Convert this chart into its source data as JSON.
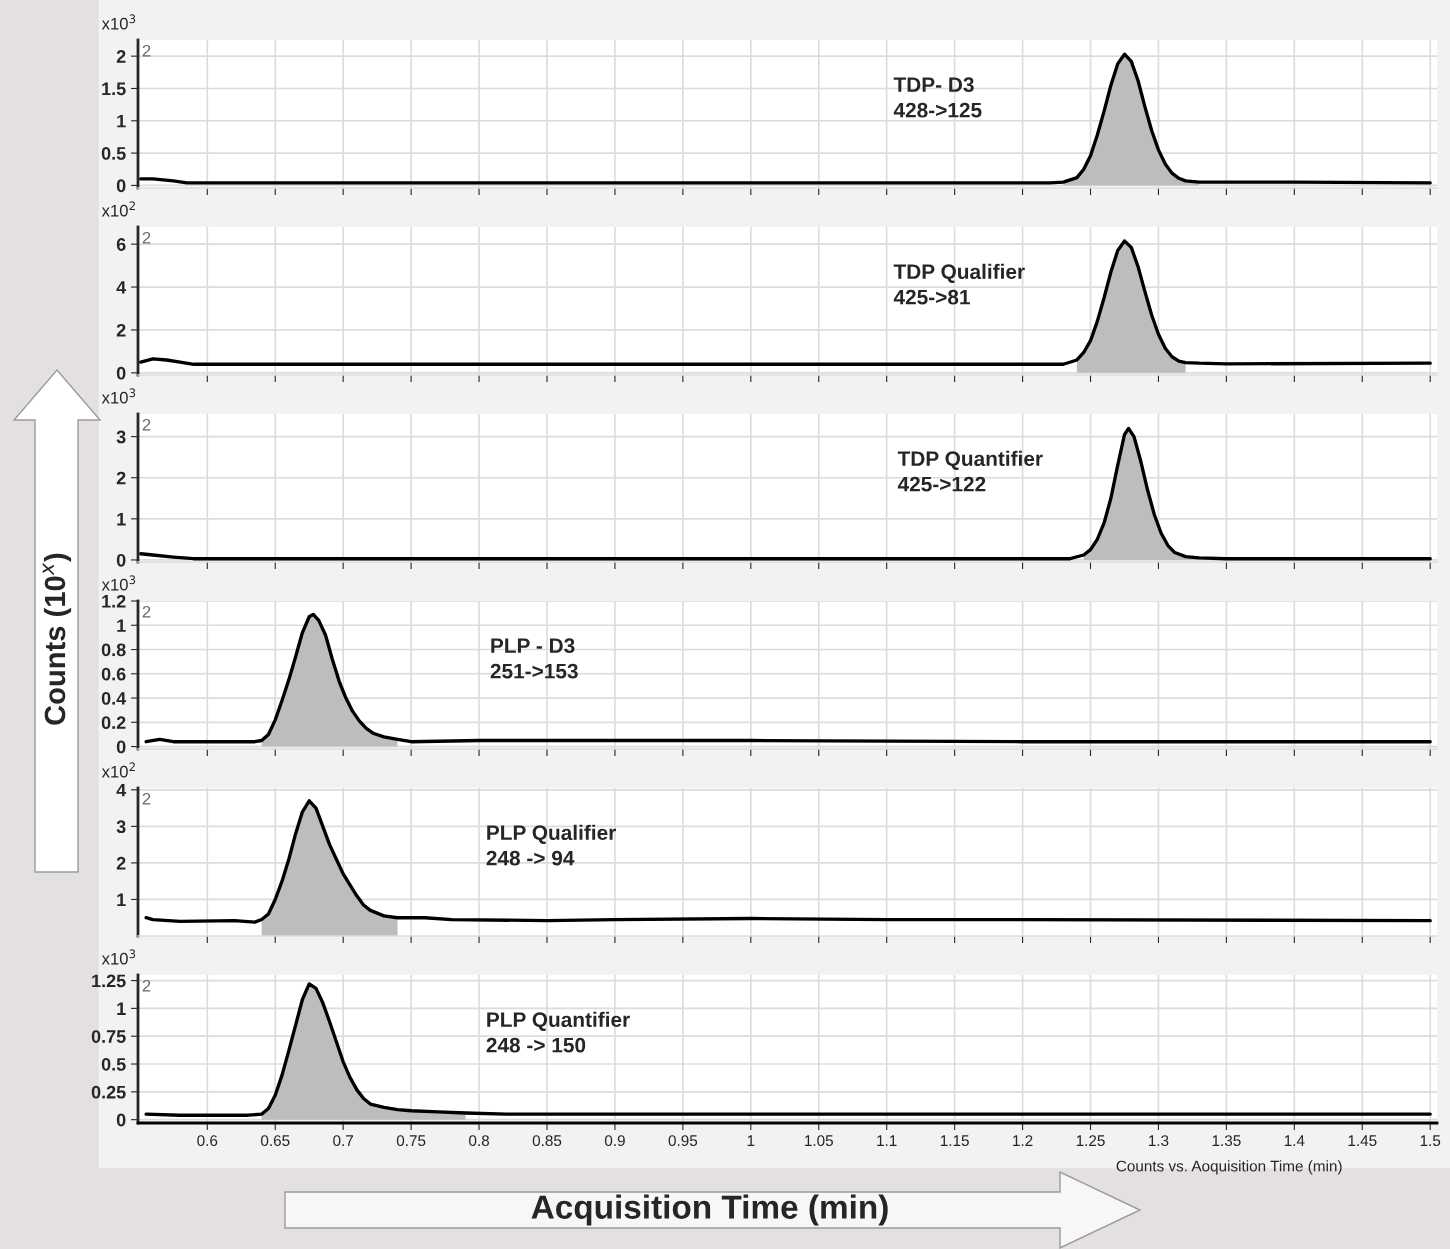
{
  "chart_data": [
    {
      "type": "line",
      "xlim": [
        0.549,
        1.505
      ],
      "ylim": [
        -0.04,
        2.25
      ],
      "xticks": [
        0.6,
        0.65,
        0.7,
        0.75,
        0.8,
        0.85,
        0.9,
        0.95,
        1,
        1.05,
        1.1,
        1.15,
        1.2,
        1.25,
        1.3,
        1.35,
        1.4,
        1.45,
        1.5
      ],
      "yticks": [
        0,
        0.5,
        1,
        1.5,
        2
      ],
      "grid": true,
      "tick_labels": "y",
      "annotations": [
        "x10$^{3}$",
        "2",
        "TDP- D3\n428->125"
      ],
      "series": [
        {
          "color": "#000000",
          "x": [
            0.551,
            0.56,
            0.575,
            0.585,
            0.7,
            0.9,
            1.1,
            1.2,
            1.22,
            1.23,
            1.24,
            1.245,
            1.25,
            1.255,
            1.26,
            1.265,
            1.27,
            1.275,
            1.28,
            1.285,
            1.29,
            1.295,
            1.3,
            1.305,
            1.31,
            1.315,
            1.32,
            1.33,
            1.35,
            1.4,
            1.5
          ],
          "values": [
            0.1,
            0.1,
            0.07,
            0.04,
            0.04,
            0.04,
            0.04,
            0.04,
            0.04,
            0.05,
            0.12,
            0.25,
            0.46,
            0.78,
            1.15,
            1.55,
            1.88,
            2.03,
            1.92,
            1.62,
            1.22,
            0.85,
            0.55,
            0.33,
            0.19,
            0.11,
            0.07,
            0.05,
            0.05,
            0.05,
            0.04
          ]
        },
        {
          "type": "area",
          "color": "#bdbdbd",
          "x": [
            1.23,
            1.24,
            1.245,
            1.25,
            1.255,
            1.26,
            1.265,
            1.27,
            1.275,
            1.28,
            1.285,
            1.29,
            1.295,
            1.3,
            1.305,
            1.31,
            1.315,
            1.32,
            1.33
          ],
          "values": [
            0.05,
            0.12,
            0.25,
            0.46,
            0.78,
            1.15,
            1.55,
            1.88,
            2.03,
            1.92,
            1.62,
            1.22,
            0.85,
            0.55,
            0.33,
            0.19,
            0.11,
            0.07,
            0.05
          ]
        }
      ]
    },
    {
      "type": "line",
      "xlim": [
        0.549,
        1.505
      ],
      "ylim": [
        -0.1,
        6.8
      ],
      "xticks": [
        0.6,
        0.65,
        0.7,
        0.75,
        0.8,
        0.85,
        0.9,
        0.95,
        1,
        1.05,
        1.1,
        1.15,
        1.2,
        1.25,
        1.3,
        1.35,
        1.4,
        1.45,
        1.5
      ],
      "yticks": [
        0,
        2,
        4,
        6
      ],
      "grid": true,
      "tick_labels": "y",
      "annotations": [
        "x10$^{2}$",
        "2",
        "TDP Qualifier\n425->81"
      ],
      "series": [
        {
          "color": "#000000",
          "x": [
            0.551,
            0.56,
            0.57,
            0.58,
            0.59,
            0.8,
            1.0,
            1.2,
            1.23,
            1.24,
            1.245,
            1.25,
            1.255,
            1.26,
            1.265,
            1.27,
            1.275,
            1.28,
            1.285,
            1.29,
            1.295,
            1.3,
            1.305,
            1.31,
            1.315,
            1.32,
            1.33,
            1.35,
            1.5
          ],
          "values": [
            0.5,
            0.65,
            0.6,
            0.5,
            0.4,
            0.4,
            0.4,
            0.4,
            0.4,
            0.6,
            0.95,
            1.5,
            2.4,
            3.5,
            4.7,
            5.7,
            6.15,
            5.85,
            4.95,
            3.8,
            2.7,
            1.8,
            1.15,
            0.75,
            0.55,
            0.48,
            0.45,
            0.42,
            0.45
          ]
        },
        {
          "type": "area",
          "color": "#bdbdbd",
          "x": [
            1.24,
            1.245,
            1.25,
            1.255,
            1.26,
            1.265,
            1.27,
            1.275,
            1.28,
            1.285,
            1.29,
            1.295,
            1.3,
            1.305,
            1.31,
            1.315,
            1.32
          ],
          "values": [
            0.6,
            0.95,
            1.5,
            2.4,
            3.5,
            4.7,
            5.7,
            6.15,
            5.85,
            4.95,
            3.8,
            2.7,
            1.8,
            1.15,
            0.75,
            0.55,
            0.48
          ]
        }
      ]
    },
    {
      "type": "line",
      "xlim": [
        0.549,
        1.505
      ],
      "ylim": [
        -0.05,
        3.55
      ],
      "xticks": [
        0.6,
        0.65,
        0.7,
        0.75,
        0.8,
        0.85,
        0.9,
        0.95,
        1,
        1.05,
        1.1,
        1.15,
        1.2,
        1.25,
        1.3,
        1.35,
        1.4,
        1.45,
        1.5
      ],
      "yticks": [
        0,
        1,
        2,
        3
      ],
      "grid": true,
      "tick_labels": "y",
      "annotations": [
        "x10$^{3}$",
        "2",
        "TDP Quantifier\n425->122"
      ],
      "series": [
        {
          "color": "#000000",
          "x": [
            0.551,
            0.56,
            0.575,
            0.59,
            0.8,
            1.0,
            1.2,
            1.235,
            1.245,
            1.25,
            1.255,
            1.26,
            1.265,
            1.27,
            1.275,
            1.278,
            1.282,
            1.287,
            1.292,
            1.297,
            1.302,
            1.307,
            1.312,
            1.32,
            1.33,
            1.35,
            1.5
          ],
          "values": [
            0.15,
            0.12,
            0.07,
            0.03,
            0.03,
            0.03,
            0.03,
            0.03,
            0.12,
            0.25,
            0.5,
            0.9,
            1.5,
            2.3,
            3.05,
            3.2,
            3.0,
            2.4,
            1.7,
            1.1,
            0.65,
            0.35,
            0.18,
            0.08,
            0.05,
            0.03,
            0.03
          ]
        },
        {
          "type": "area",
          "color": "#bdbdbd",
          "x": [
            1.245,
            1.25,
            1.255,
            1.26,
            1.265,
            1.27,
            1.275,
            1.278,
            1.282,
            1.287,
            1.292,
            1.297,
            1.302,
            1.307,
            1.312,
            1.32,
            1.33
          ],
          "values": [
            0.12,
            0.25,
            0.5,
            0.9,
            1.5,
            2.3,
            3.05,
            3.2,
            3.0,
            2.4,
            1.7,
            1.1,
            0.65,
            0.35,
            0.18,
            0.08,
            0.05
          ]
        }
      ]
    },
    {
      "type": "line",
      "ylabel": "Counts (10$^{x}$)",
      "xlim": [
        0.549,
        1.505
      ],
      "ylim": [
        -0.02,
        1.2
      ],
      "xticks": [
        0.6,
        0.65,
        0.7,
        0.75,
        0.8,
        0.85,
        0.9,
        0.95,
        1,
        1.05,
        1.1,
        1.15,
        1.2,
        1.25,
        1.3,
        1.35,
        1.4,
        1.45,
        1.5
      ],
      "yticks": [
        0,
        0.2,
        0.4,
        0.6,
        0.8,
        1,
        1.2
      ],
      "grid": true,
      "tick_labels": "y",
      "annotations": [
        "x10$^{3}$",
        "2",
        "PLP - D3\n251->153"
      ],
      "series": [
        {
          "color": "#000000",
          "x": [
            0.555,
            0.565,
            0.575,
            0.6,
            0.635,
            0.64,
            0.645,
            0.65,
            0.655,
            0.66,
            0.665,
            0.67,
            0.675,
            0.678,
            0.682,
            0.687,
            0.692,
            0.697,
            0.702,
            0.707,
            0.712,
            0.717,
            0.722,
            0.73,
            0.74,
            0.75,
            0.8,
            1.0,
            1.2,
            1.5
          ],
          "values": [
            0.04,
            0.06,
            0.04,
            0.04,
            0.04,
            0.05,
            0.1,
            0.22,
            0.38,
            0.55,
            0.74,
            0.94,
            1.07,
            1.09,
            1.04,
            0.92,
            0.72,
            0.54,
            0.4,
            0.29,
            0.21,
            0.15,
            0.11,
            0.08,
            0.06,
            0.04,
            0.05,
            0.05,
            0.04,
            0.04
          ]
        },
        {
          "type": "area",
          "color": "#bdbdbd",
          "x": [
            0.64,
            0.645,
            0.65,
            0.655,
            0.66,
            0.665,
            0.67,
            0.675,
            0.678,
            0.682,
            0.687,
            0.692,
            0.697,
            0.702,
            0.707,
            0.712,
            0.717,
            0.722,
            0.73,
            0.74
          ],
          "values": [
            0.05,
            0.1,
            0.22,
            0.38,
            0.55,
            0.74,
            0.94,
            1.07,
            1.09,
            1.04,
            0.92,
            0.72,
            0.54,
            0.4,
            0.29,
            0.21,
            0.15,
            0.11,
            0.08,
            0.06
          ]
        }
      ]
    },
    {
      "type": "line",
      "xlim": [
        0.549,
        1.505
      ],
      "ylim": [
        0,
        4.05
      ],
      "xticks": [
        0.6,
        0.65,
        0.7,
        0.75,
        0.8,
        0.85,
        0.9,
        0.95,
        1,
        1.05,
        1.1,
        1.15,
        1.2,
        1.25,
        1.3,
        1.35,
        1.4,
        1.45,
        1.5
      ],
      "yticks": [
        1,
        2,
        3,
        4
      ],
      "grid": true,
      "tick_labels": "y",
      "annotations": [
        "x10$^{2}$",
        "2",
        "PLP Qualifier\n248 -> 94"
      ],
      "series": [
        {
          "color": "#000000",
          "x": [
            0.555,
            0.56,
            0.58,
            0.62,
            0.635,
            0.64,
            0.645,
            0.65,
            0.655,
            0.66,
            0.665,
            0.67,
            0.675,
            0.68,
            0.685,
            0.69,
            0.695,
            0.7,
            0.705,
            0.71,
            0.715,
            0.72,
            0.73,
            0.74,
            0.76,
            0.78,
            0.85,
            0.9,
            1.0,
            1.1,
            1.2,
            1.5
          ],
          "values": [
            0.5,
            0.45,
            0.4,
            0.42,
            0.38,
            0.45,
            0.6,
            1.0,
            1.5,
            2.1,
            2.8,
            3.4,
            3.7,
            3.5,
            3.0,
            2.5,
            2.1,
            1.7,
            1.4,
            1.1,
            0.85,
            0.7,
            0.55,
            0.5,
            0.5,
            0.45,
            0.42,
            0.45,
            0.48,
            0.45,
            0.45,
            0.42
          ]
        },
        {
          "type": "area",
          "color": "#bdbdbd",
          "x": [
            0.64,
            0.645,
            0.65,
            0.655,
            0.66,
            0.665,
            0.67,
            0.675,
            0.68,
            0.685,
            0.69,
            0.695,
            0.7,
            0.705,
            0.71,
            0.715,
            0.72,
            0.73,
            0.74
          ],
          "values": [
            0.45,
            0.6,
            1.0,
            1.5,
            2.1,
            2.8,
            3.4,
            3.7,
            3.5,
            3.0,
            2.5,
            2.1,
            1.7,
            1.4,
            1.1,
            0.85,
            0.7,
            0.55,
            0.5
          ]
        }
      ]
    },
    {
      "type": "line",
      "xlabel": "Acquisition Time (min)",
      "xlim": [
        0.549,
        1.505
      ],
      "ylim": [
        -0.03,
        1.3
      ],
      "xticks": [
        0.6,
        0.65,
        0.7,
        0.75,
        0.8,
        0.85,
        0.9,
        0.95,
        1,
        1.05,
        1.1,
        1.15,
        1.2,
        1.25,
        1.3,
        1.35,
        1.4,
        1.45,
        1.5
      ],
      "yticks": [
        0,
        0.25,
        0.5,
        0.75,
        1,
        1.25
      ],
      "grid": true,
      "annotations": [
        "x10$^{3}$",
        "2",
        "PLP Quantifier\n248 -> 150",
        "Counts vs. Aoquisition Time (min)"
      ],
      "series": [
        {
          "color": "#000000",
          "x": [
            0.555,
            0.58,
            0.63,
            0.64,
            0.645,
            0.65,
            0.655,
            0.66,
            0.665,
            0.67,
            0.675,
            0.68,
            0.685,
            0.69,
            0.695,
            0.7,
            0.705,
            0.71,
            0.715,
            0.72,
            0.73,
            0.74,
            0.75,
            0.77,
            0.79,
            0.82,
            1.0,
            1.5
          ],
          "values": [
            0.05,
            0.04,
            0.04,
            0.05,
            0.1,
            0.22,
            0.4,
            0.62,
            0.85,
            1.08,
            1.22,
            1.18,
            1.05,
            0.88,
            0.7,
            0.52,
            0.38,
            0.27,
            0.19,
            0.14,
            0.11,
            0.09,
            0.08,
            0.07,
            0.06,
            0.05,
            0.05,
            0.05
          ]
        },
        {
          "type": "area",
          "color": "#bdbdbd",
          "x": [
            0.64,
            0.645,
            0.65,
            0.655,
            0.66,
            0.665,
            0.67,
            0.675,
            0.68,
            0.685,
            0.69,
            0.695,
            0.7,
            0.705,
            0.71,
            0.715,
            0.72,
            0.73,
            0.74,
            0.75,
            0.77,
            0.79
          ],
          "values": [
            0.05,
            0.1,
            0.22,
            0.4,
            0.62,
            0.85,
            1.08,
            1.22,
            1.18,
            1.05,
            0.88,
            0.7,
            0.52,
            0.38,
            0.27,
            0.19,
            0.14,
            0.11,
            0.09,
            0.08,
            0.07,
            0.06
          ]
        }
      ]
    }
  ]
}
